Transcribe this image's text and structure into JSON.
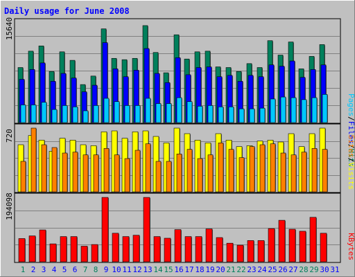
{
  "chart_data": [
    {
      "type": "bar",
      "title": "Daily usage for June 2008",
      "categories": [
        "1",
        "2",
        "3",
        "4",
        "5",
        "6",
        "7",
        "8",
        "9",
        "10",
        "11",
        "12",
        "13",
        "14",
        "15",
        "16",
        "17",
        "18",
        "19",
        "20",
        "21",
        "22",
        "23",
        "24",
        "25",
        "26",
        "27",
        "28",
        "29",
        "30",
        "31"
      ],
      "weekend_days": [
        "1",
        "7",
        "8",
        "14",
        "15",
        "21",
        "22",
        "28",
        "29"
      ],
      "y_tick_label": "15640",
      "ylim": [
        0,
        15640
      ],
      "ylabel_parts": [
        "Pages",
        "/",
        "Files",
        "/",
        "Hits"
      ],
      "series": [
        {
          "name": "Hits",
          "values": [
            8400,
            10900,
            11700,
            7800,
            10800,
            9500,
            5800,
            7100,
            14300,
            9800,
            9600,
            9800,
            14800,
            10700,
            7600,
            13400,
            9700,
            10800,
            10900,
            8500,
            8400,
            7800,
            9000,
            8400,
            12500,
            10300,
            12300,
            8200,
            10100,
            11900,
            0
          ]
        },
        {
          "name": "Files",
          "values": [
            6600,
            8100,
            9100,
            6300,
            7500,
            6800,
            4700,
            5700,
            12200,
            8200,
            7000,
            8000,
            11300,
            7500,
            6100,
            9900,
            7300,
            8400,
            8500,
            7000,
            7200,
            6300,
            7200,
            7000,
            8800,
            8600,
            9400,
            6900,
            8100,
            8800,
            0
          ]
        },
        {
          "name": "Pages",
          "values": [
            2700,
            2700,
            3100,
            2000,
            2600,
            2400,
            1800,
            2600,
            3700,
            3200,
            2600,
            2600,
            3700,
            2900,
            2900,
            3800,
            3200,
            2500,
            2600,
            2400,
            2400,
            2100,
            2100,
            2200,
            3600,
            3900,
            3800,
            3500,
            3800,
            4300,
            0
          ]
        }
      ]
    },
    {
      "type": "bar",
      "categories": [
        "1",
        "2",
        "3",
        "4",
        "5",
        "6",
        "7",
        "8",
        "9",
        "10",
        "11",
        "12",
        "13",
        "14",
        "15",
        "16",
        "17",
        "18",
        "19",
        "20",
        "21",
        "22",
        "23",
        "24",
        "25",
        "26",
        "27",
        "28",
        "29",
        "30",
        "31"
      ],
      "y_tick_label": "720",
      "ylim": [
        0,
        720
      ],
      "ylabel_parts": [
        "Sites",
        "/",
        "Visits"
      ],
      "series": [
        {
          "name": "Visits",
          "values": [
            510,
            610,
            560,
            440,
            580,
            560,
            510,
            500,
            650,
            660,
            580,
            650,
            660,
            600,
            530,
            690,
            630,
            560,
            530,
            630,
            560,
            490,
            500,
            550,
            560,
            540,
            630,
            490,
            630,
            690,
            0
          ]
        },
        {
          "name": "Sites",
          "values": [
            330,
            690,
            510,
            480,
            420,
            430,
            400,
            400,
            470,
            400,
            360,
            450,
            520,
            330,
            330,
            410,
            460,
            360,
            400,
            530,
            460,
            370,
            490,
            510,
            520,
            420,
            400,
            430,
            470,
            460,
            0
          ]
        }
      ]
    },
    {
      "type": "bar",
      "categories": [
        "1",
        "2",
        "3",
        "4",
        "5",
        "6",
        "7",
        "8",
        "9",
        "10",
        "11",
        "12",
        "13",
        "14",
        "15",
        "16",
        "17",
        "18",
        "19",
        "20",
        "21",
        "22",
        "23",
        "24",
        "25",
        "26",
        "27",
        "28",
        "29",
        "30",
        "31"
      ],
      "y_tick_label": "194098",
      "ylim": [
        0,
        194098
      ],
      "ylabel_parts": [
        "KBytes"
      ],
      "series": [
        {
          "name": "KBytes",
          "values": [
            70000,
            78000,
            96000,
            54000,
            76000,
            76000,
            47000,
            52000,
            194000,
            86000,
            76000,
            80000,
            194000,
            76000,
            71000,
            97000,
            76000,
            76000,
            99000,
            73000,
            56000,
            50000,
            64000,
            64000,
            100000,
            125000,
            98000,
            92000,
            134000,
            86000,
            0
          ]
        }
      ]
    }
  ],
  "colors": {
    "background": "#C0C0C0",
    "title": "#0000FF",
    "gridline": "#808080",
    "weekday_label": "#0000FF",
    "weekend_label": "#00805C",
    "hits": "#00805C",
    "files": "#0000FF",
    "pages": "#00C8FF",
    "visits": "#FFFF00",
    "sites": "#FF8000",
    "kbytes": "#FF0000",
    "slash": "#000000"
  }
}
